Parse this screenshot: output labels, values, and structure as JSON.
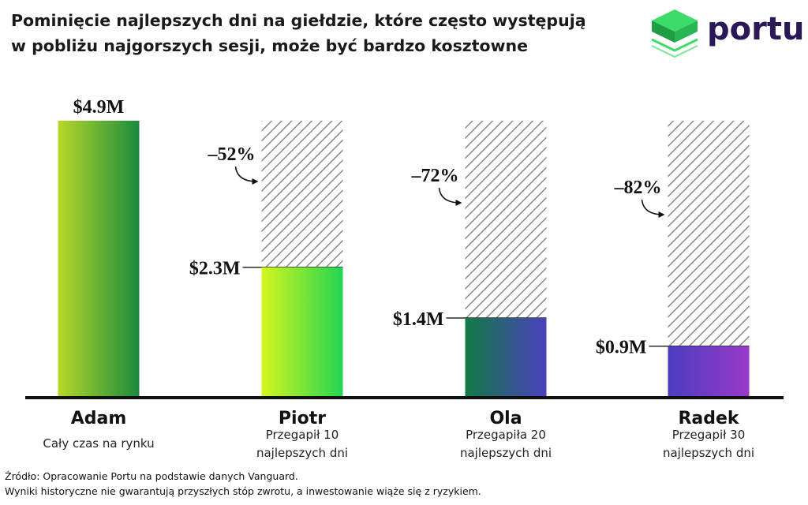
{
  "title_line1": "Pominięcie najlepszych dni na giełdzie, które często występują",
  "title_line2": "w pobliżu najgorszych sesji, może być bardzo kosztowne",
  "logo": {
    "text": "portu",
    "icon": "green-cube-icon"
  },
  "chart_data": {
    "type": "bar",
    "categories": [
      "Adam",
      "Piotr",
      "Ola",
      "Radek"
    ],
    "subtitles": [
      [
        "Cały czas na rynku"
      ],
      [
        "Przegapił 10",
        "najlepszych dni"
      ],
      [
        "Przegapiła 20",
        "najlepszych dni"
      ],
      [
        "Przegapił 30",
        "najlepszych dni"
      ]
    ],
    "values": [
      4.9,
      2.3,
      1.4,
      0.9
    ],
    "value_labels": [
      "$4.9M",
      "$2.3M",
      "$1.4M",
      "$0.9M"
    ],
    "reference_value": 4.9,
    "loss_labels": [
      "",
      "–52%",
      "–72%",
      "–82%"
    ],
    "unit": "USD millions",
    "ylim": [
      0,
      4.9
    ],
    "grid": false,
    "legend": "none",
    "colors": [
      [
        "#b7d82a",
        "#1a8a3c"
      ],
      [
        "#d6f51f",
        "#22d651"
      ],
      [
        "#127a45",
        "#4b3fbe"
      ],
      [
        "#4a3dc0",
        "#9a3ac9"
      ]
    ],
    "hatch_color": "#8a8a8a"
  },
  "footer": {
    "line1": "Źródło: Opracowanie Portu na podstawie danych Vanguard.",
    "line2": "Wyniki historyczne nie gwarantują przyszłych stóp zwrotu, a inwestowanie wiąże się z ryzykiem."
  }
}
